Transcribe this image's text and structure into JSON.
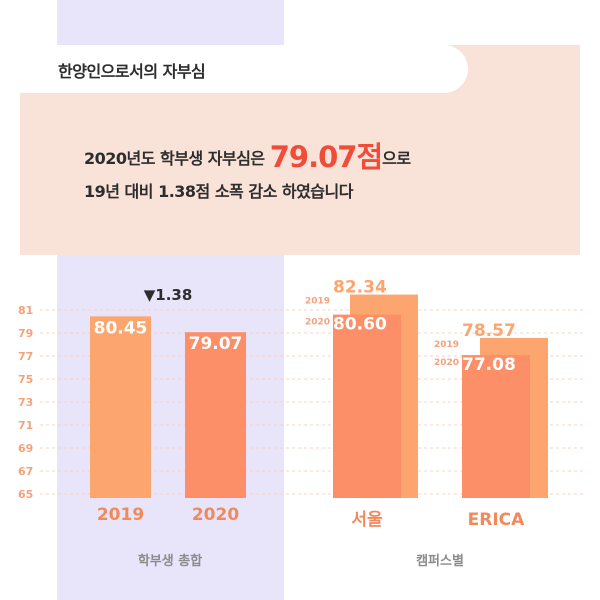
{
  "header": {
    "title": "한양인으로서의 자부심",
    "line1_before": "2020년도 학부생 자부심은 ",
    "line1_highlight": "79.07점",
    "line1_after": "으로",
    "line2": "19년 대비 1.38점 소폭 감소 하였습니다"
  },
  "colors": {
    "bar_2019": "#fda56e",
    "bar_2020": "#fc8e68",
    "highlight": "#ef4c3a",
    "lavender": "#e8e5fb",
    "panel": "#f9e3d8"
  },
  "chart_data": [
    {
      "type": "bar",
      "title": "학부생 총합",
      "categories": [
        "2019",
        "2020"
      ],
      "values": [
        80.45,
        79.07
      ],
      "value_labels": [
        "80.45",
        "79.07"
      ],
      "annotation": "▼1.38",
      "yticks": [
        "81",
        "79",
        "77",
        "75",
        "73",
        "71",
        "69",
        "67",
        "65"
      ],
      "ylim": [
        65,
        81
      ],
      "grid": true
    },
    {
      "type": "bar",
      "title": "캠퍼스별",
      "categories": [
        "서울",
        "ERICA"
      ],
      "series": [
        {
          "name": "2019",
          "values": [
            82.34,
            78.57
          ],
          "value_labels": [
            "82.34",
            "78.57"
          ]
        },
        {
          "name": "2020",
          "values": [
            80.6,
            77.08
          ],
          "value_labels": [
            "80.60",
            "77.08"
          ]
        }
      ],
      "ylim": [
        65,
        81
      ]
    }
  ]
}
